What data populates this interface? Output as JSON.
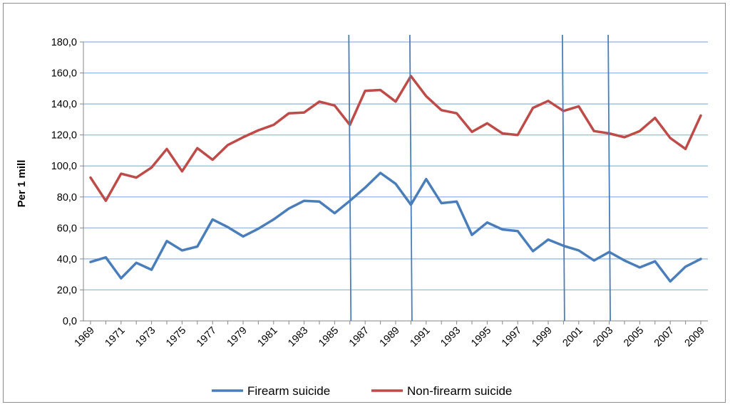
{
  "chart_data": {
    "type": "line",
    "ylabel": "Per 1 mill",
    "ylim": [
      0,
      180
    ],
    "y_ticks": [
      "0,0",
      "20,0",
      "40,0",
      "60,0",
      "80,0",
      "100,0",
      "120,0",
      "140,0",
      "160,0",
      "180,0"
    ],
    "x": [
      1969,
      1970,
      1971,
      1972,
      1973,
      1974,
      1975,
      1976,
      1977,
      1978,
      1979,
      1980,
      1981,
      1982,
      1983,
      1984,
      1985,
      1986,
      1987,
      1988,
      1989,
      1990,
      1991,
      1992,
      1993,
      1994,
      1995,
      1996,
      1997,
      1998,
      1999,
      2000,
      2001,
      2002,
      2003,
      2004,
      2005,
      2006,
      2007,
      2008,
      2009
    ],
    "x_tick_labels": [
      "1969",
      "1971",
      "1973",
      "1975",
      "1977",
      "1979",
      "1981",
      "1983",
      "1985",
      "1987",
      "1989",
      "1991",
      "1993",
      "1995",
      "1997",
      "1999",
      "2001",
      "2003",
      "2005",
      "2007",
      "2009"
    ],
    "grid": "horizontal",
    "legend_position": "bottom",
    "series": [
      {
        "name": "Firearm suicide",
        "color": "#4a7ebb",
        "values": [
          38.0,
          41.0,
          27.5,
          37.5,
          33.0,
          51.5,
          45.5,
          48.0,
          65.5,
          60.5,
          54.5,
          59.5,
          65.5,
          72.5,
          77.5,
          77.0,
          69.5,
          77.5,
          86.0,
          95.5,
          88.5,
          75.0,
          91.5,
          76.0,
          77.0,
          55.5,
          63.5,
          59.0,
          58.0,
          45.0,
          52.5,
          48.5,
          45.5,
          39.0,
          44.5,
          39.0,
          34.5,
          38.5,
          25.5,
          35.0,
          40.0
        ]
      },
      {
        "name": "Non-firearm suicide",
        "color": "#be4b48",
        "values": [
          92.5,
          77.5,
          95.0,
          92.5,
          99.0,
          111.0,
          96.5,
          111.5,
          104.0,
          113.5,
          118.5,
          123.0,
          126.5,
          134.0,
          134.5,
          141.5,
          139.0,
          126.5,
          148.5,
          149.0,
          141.5,
          158.0,
          145.0,
          136.0,
          134.0,
          122.0,
          127.5,
          121.0,
          120.0,
          137.5,
          142.0,
          135.5,
          138.5,
          122.5,
          121.0,
          118.5,
          122.5,
          131.0,
          118.0,
          111.0,
          132.5
        ]
      }
    ],
    "vertical_markers": [
      1986,
      1990,
      2000,
      2003
    ],
    "vertical_marker_color": "#4a7ebb"
  }
}
